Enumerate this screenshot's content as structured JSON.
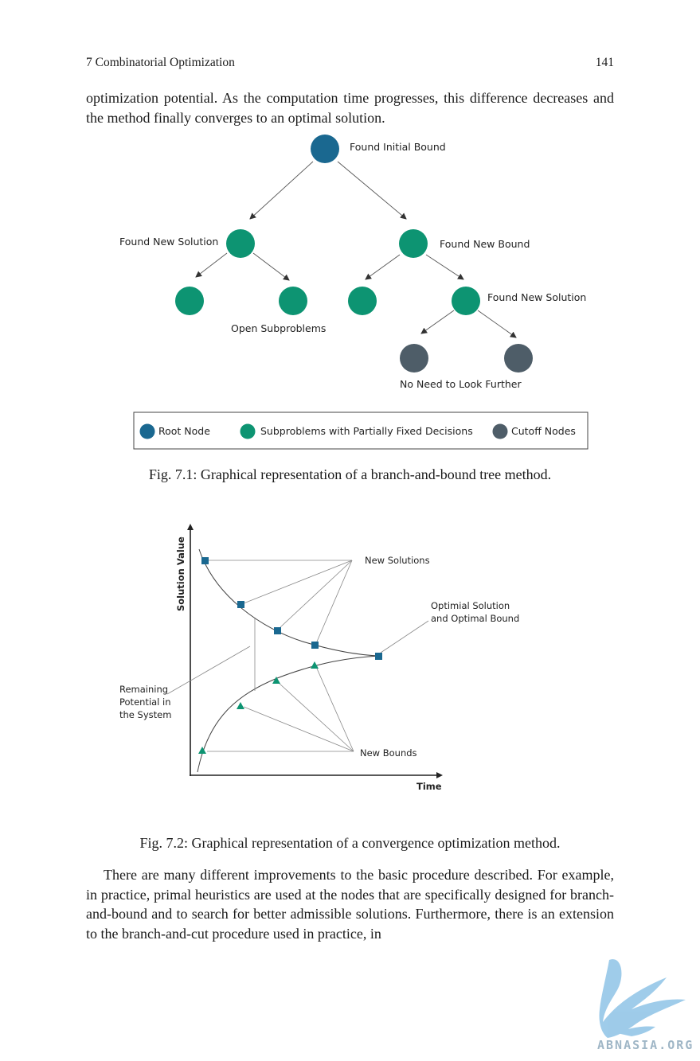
{
  "header": {
    "chapter": "7  Combinatorial Optimization",
    "page_number": "141"
  },
  "paragraph1": "optimization potential. As the computation time progresses, this difference decreases and the method finally converges to an optimal solution.",
  "figure1": {
    "labels": {
      "root": "Found Initial Bound",
      "left": "Found New Solution",
      "right": "Found New Bound",
      "right_right": "Found New Solution",
      "open": "Open Subproblems",
      "cutoff": "No Need to Look Further"
    },
    "legend": {
      "root": "Root Node",
      "sub": "Subproblems with Partially Fixed Decisions",
      "cutoff": "Cutoff Nodes"
    },
    "colors": {
      "root": "#1a6890",
      "sub": "#0d9472",
      "cutoff": "#4e5d68"
    },
    "caption": "Fig. 7.1: Graphical representation of a branch-and-bound tree method."
  },
  "figure2": {
    "ylabel": "Solution Value",
    "xlabel": "Time",
    "labels": {
      "new_solutions": "New Solutions",
      "optimal_line1": "Optimial Solution",
      "optimal_line2": "and Optimal Bound",
      "remaining_line1": "Remaining",
      "remaining_line2": "Potential in",
      "remaining_line3": "the System",
      "new_bounds": "New Bounds"
    },
    "colors": {
      "solution": "#1a6890",
      "bound": "#0d9472"
    },
    "caption": "Fig. 7.2: Graphical representation of a convergence optimization method."
  },
  "paragraph2": "There are many different improvements to the basic procedure described. For example, in practice, primal heuristics are used at the nodes that are specifically designed for branch-and-bound and to search for better admissible solutions. Furthermore, there is an extension to the branch-and-cut procedure used in practice, in",
  "watermark": {
    "text": "ABNASIA.ORG"
  }
}
